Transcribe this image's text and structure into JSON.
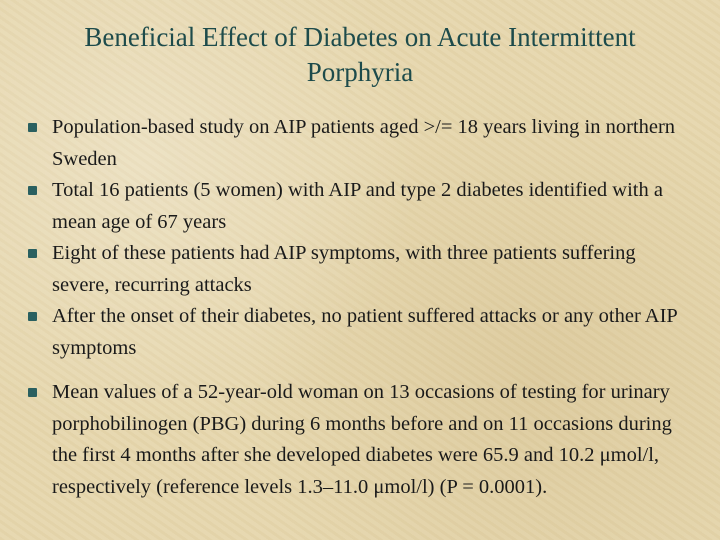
{
  "header": {
    "title": "Beneficial Effect of Diabetes on Acute Intermittent Porphyria"
  },
  "bullets": [
    "Population-based study on AIP patients aged >/= 18 years living in northern Sweden",
    "Total 16 patients (5 women) with AIP and type 2 diabetes identified with a mean age of 67 years",
    "Eight of these patients had AIP symptoms, with three patients suffering severe, recurring attacks",
    "After the onset of their diabetes, no patient suffered attacks or any other AIP symptoms",
    "Mean values of a 52-year-old woman on 13 occasions of testing for urinary porphobilinogen (PBG) during 6 months before and on 11 occasions during the first 4 months after she developed diabetes were 65.9 and 10.2 μmol/l, respectively (reference levels 1.3–11.0 μmol/l) (P = 0.0001)."
  ]
}
